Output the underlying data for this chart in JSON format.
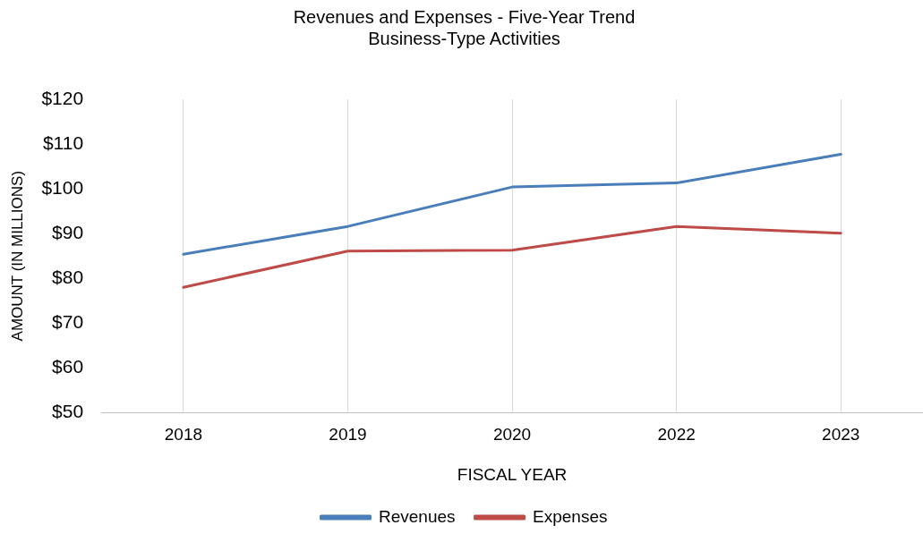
{
  "chart_data": {
    "type": "line",
    "title": "Revenues and Expenses - Five-Year Trend",
    "subtitle": "Business-Type Activities",
    "xlabel": "FISCAL YEAR",
    "ylabel": "AMOUNT (IN MILLIONS)",
    "categories": [
      "2018",
      "2019",
      "2020",
      "2022",
      "2023"
    ],
    "series": [
      {
        "name": "Revenues",
        "color": "#4a7ebb",
        "values": [
          85.4,
          91.6,
          100.4,
          101.3,
          107.7
        ]
      },
      {
        "name": "Expenses",
        "color": "#be4b48",
        "values": [
          78.0,
          86.1,
          86.3,
          91.6,
          90.1
        ]
      }
    ],
    "ylim": [
      50,
      120
    ],
    "yticks": [
      {
        "value": 50,
        "label": "$50"
      },
      {
        "value": 60,
        "label": "$60"
      },
      {
        "value": 70,
        "label": "$70"
      },
      {
        "value": 80,
        "label": "$80"
      },
      {
        "value": 90,
        "label": "$90"
      },
      {
        "value": 100,
        "label": "$100"
      },
      {
        "value": 110,
        "label": "$110"
      },
      {
        "value": 120,
        "label": "$120"
      }
    ],
    "grid": "x",
    "legend": "bottom",
    "marker": "none",
    "line_style": "solid"
  }
}
